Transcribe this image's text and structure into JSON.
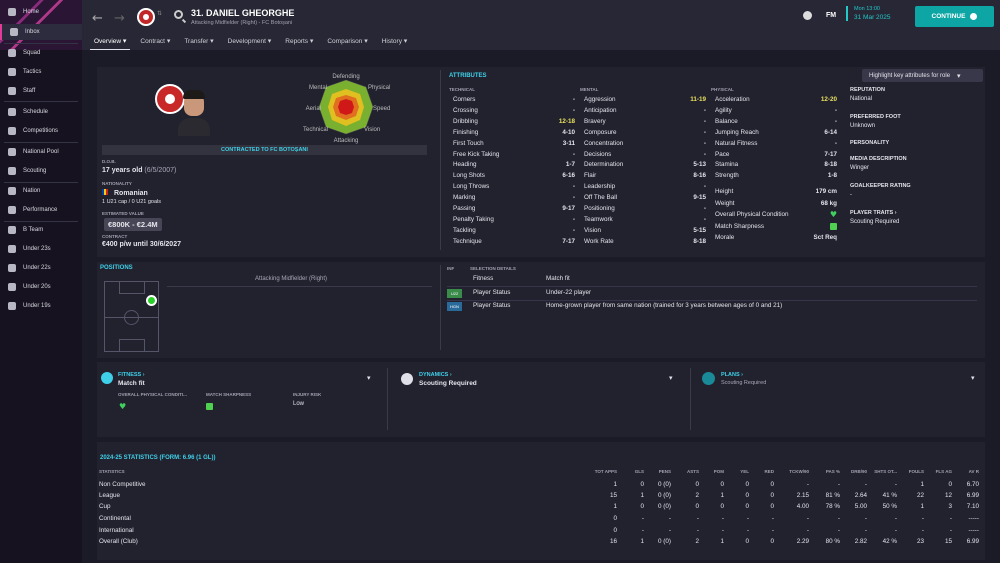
{
  "sidebar": {
    "items": [
      "Home",
      "Inbox",
      "Squad",
      "Tactics",
      "Staff",
      "Schedule",
      "Competitions",
      "National Pool",
      "Scouting",
      "Nation",
      "Performance",
      "B Team",
      "Under 23s",
      "Under 22s",
      "Under 20s",
      "Under 19s"
    ]
  },
  "header": {
    "player_name": "31. DANIEL GHEORGHE",
    "player_sub": "Attacking Midfielder (Right) - FC Botoșani",
    "fm": "FM",
    "date_line1": "Mon 13:00",
    "date_line2": "31 Mar 2025",
    "continue": "CONTINUE",
    "tabs": [
      "Overview",
      "Contract",
      "Transfer",
      "Development",
      "Reports",
      "Comparison",
      "History"
    ]
  },
  "profile": {
    "contracted": "CONTRACTED TO FC BOTOȘANI",
    "dob_label": "D.O.B.",
    "dob": "17 years old",
    "dob_date": "(6/5/2007)",
    "nationality_label": "NATIONALITY",
    "nationality": "Romanian",
    "caps": "1 U21 cap / 0 U21 goals",
    "value_label": "ESTIMATED VALUE",
    "value": "€800K - €2.4M",
    "contract_label": "CONTRACT",
    "contract": "€400 p/w until 30/6/2027"
  },
  "radar": {
    "labels": [
      "Defending",
      "Physical",
      "Speed",
      "Vision",
      "Attacking",
      "Technical",
      "Aerial",
      "Mental"
    ]
  },
  "attributes": {
    "title": "ATTRIBUTES",
    "highlight": "Highlight key attributes for role",
    "technical_label": "TECHNICAL",
    "mental_label": "MENTAL",
    "physical_label": "PHYSICAL",
    "technical": [
      [
        "Corners",
        "-"
      ],
      [
        "Crossing",
        "-"
      ],
      [
        "Dribbling",
        "12-18"
      ],
      [
        "Finishing",
        "4-10"
      ],
      [
        "First Touch",
        "3-11"
      ],
      [
        "Free Kick Taking",
        "-"
      ],
      [
        "Heading",
        "1-7"
      ],
      [
        "Long Shots",
        "6-16"
      ],
      [
        "Long Throws",
        "-"
      ],
      [
        "Marking",
        "-"
      ],
      [
        "Passing",
        "9-17"
      ],
      [
        "Penalty Taking",
        "-"
      ],
      [
        "Tackling",
        "-"
      ],
      [
        "Technique",
        "7-17"
      ]
    ],
    "mental": [
      [
        "Aggression",
        "11-19"
      ],
      [
        "Anticipation",
        "-"
      ],
      [
        "Bravery",
        "-"
      ],
      [
        "Composure",
        "-"
      ],
      [
        "Concentration",
        "-"
      ],
      [
        "Decisions",
        "-"
      ],
      [
        "Determination",
        "5-13"
      ],
      [
        "Flair",
        "8-16"
      ],
      [
        "Leadership",
        "-"
      ],
      [
        "Off The Ball",
        "9-15"
      ],
      [
        "Positioning",
        "-"
      ],
      [
        "Teamwork",
        "-"
      ],
      [
        "Vision",
        "5-15"
      ],
      [
        "Work Rate",
        "8-18"
      ]
    ],
    "physical": [
      [
        "Acceleration",
        "12-20"
      ],
      [
        "Agility",
        "-"
      ],
      [
        "Balance",
        "-"
      ],
      [
        "Jumping Reach",
        "6-14"
      ],
      [
        "Natural Fitness",
        "-"
      ],
      [
        "Pace",
        "7-17"
      ],
      [
        "Stamina",
        "8-18"
      ],
      [
        "Strength",
        "1-8"
      ]
    ],
    "extra": [
      [
        "Height",
        "179 cm"
      ],
      [
        "Weight",
        "68 kg"
      ],
      [
        "Overall Physical Condition",
        ""
      ],
      [
        "Match Sharpness",
        ""
      ],
      [
        "Morale",
        "Sct Req"
      ]
    ]
  },
  "info": [
    [
      "REPUTATION",
      "National"
    ],
    [
      "PREFERRED FOOT",
      "Unknown"
    ],
    [
      "PERSONALITY",
      ""
    ],
    [
      "MEDIA DESCRIPTION",
      "Winger"
    ],
    [
      "GOALKEEPER RATING",
      "-"
    ],
    [
      "PLAYER TRAITS ›",
      "Scouting Required"
    ]
  ],
  "positions": {
    "title": "POSITIONS",
    "role": "Attacking Midfielder (Right)",
    "inf": "INF",
    "sel": "SELECTION DETAILS",
    "rows": [
      [
        "",
        "Fitness",
        "Match fit"
      ],
      [
        "U22",
        "Player Status",
        "Under-22 player"
      ],
      [
        "HGN",
        "Player Status",
        "Home-grown player from same nation (trained for 3 years between ages of 0 and 21)"
      ]
    ]
  },
  "fitness": {
    "title": "FITNESS ›",
    "value": "Match fit",
    "opc": "OVERALL PHYSICAL CONDITI...",
    "ms": "MATCH SHARPNESS",
    "ir": "INJURY RISK",
    "ir_val": "Low"
  },
  "dynamics": {
    "title": "DYNAMICS ›",
    "value": "Scouting Required"
  },
  "plans": {
    "title": "PLANS ›",
    "value": "Scouting Required"
  },
  "stats": {
    "title": "2024-25 STATISTICS (FORM: 6.96 (1 GL))",
    "headers": [
      "STATISTICS",
      "TOT APPS",
      "GLS",
      "PENS",
      "ASTS",
      "POM",
      "YEL",
      "RED",
      "TCKW/90",
      "PAS %",
      "DRB/90",
      "SHTS OT...",
      "FOULS",
      "FLS AG",
      "AV R"
    ],
    "rows": [
      [
        "Non Competitive",
        "1",
        "0",
        "0 (0)",
        "0",
        "0",
        "0",
        "0",
        "-",
        "-",
        "-",
        "-",
        "1",
        "0",
        "6.70"
      ],
      [
        "League",
        "15",
        "1",
        "0 (0)",
        "2",
        "1",
        "0",
        "0",
        "2.15",
        "81 %",
        "2.64",
        "41 %",
        "22",
        "12",
        "6.99"
      ],
      [
        "Cup",
        "1",
        "0",
        "0 (0)",
        "0",
        "0",
        "0",
        "0",
        "4.00",
        "78 %",
        "5.00",
        "50 %",
        "1",
        "3",
        "7.10"
      ],
      [
        "Continental",
        "0",
        "-",
        "-",
        "-",
        "-",
        "-",
        "-",
        "-",
        "-",
        "-",
        "-",
        "-",
        "-",
        "-----"
      ],
      [
        "International",
        "0",
        "-",
        "-",
        "-",
        "-",
        "-",
        "-",
        "-",
        "-",
        "-",
        "-",
        "-",
        "-",
        "-----"
      ],
      [
        "Overall (Club)",
        "16",
        "1",
        "0 (0)",
        "2",
        "1",
        "0",
        "0",
        "2.29",
        "80 %",
        "2.82",
        "42 %",
        "23",
        "15",
        "6.99"
      ]
    ]
  }
}
